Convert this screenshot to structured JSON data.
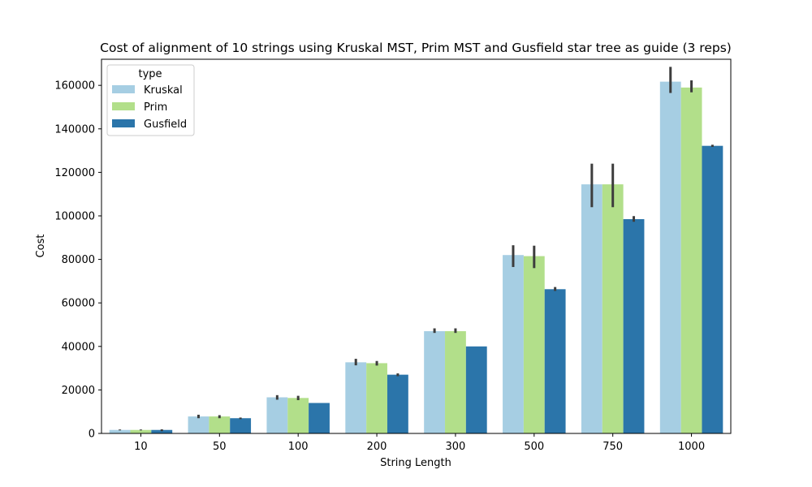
{
  "chart_data": {
    "type": "bar",
    "title": "Cost of alignment of 10 strings using Kruskal MST, Prim MST and Gusfield star tree as guide (3 reps)",
    "xlabel": "String Length",
    "ylabel": "Cost",
    "ylim": [
      0,
      172000
    ],
    "yticks": [
      0,
      20000,
      40000,
      60000,
      80000,
      100000,
      120000,
      140000,
      160000
    ],
    "categories": [
      "10",
      "50",
      "100",
      "200",
      "300",
      "500",
      "750",
      "1000"
    ],
    "legend": {
      "title": "type",
      "position": "top-left"
    },
    "series": [
      {
        "name": "Kruskal",
        "color": "#a6cee3",
        "values": [
          1600,
          7800,
          16600,
          32700,
          47000,
          82000,
          114500,
          161700
        ],
        "err_low": [
          1400,
          7000,
          15500,
          31300,
          46200,
          76500,
          104000,
          156500
        ],
        "err_high": [
          1800,
          8600,
          17600,
          34300,
          48300,
          86500,
          124000,
          168500
        ]
      },
      {
        "name": "Prim",
        "color": "#b2df8a",
        "values": [
          1600,
          7800,
          16300,
          32300,
          47000,
          81500,
          114500,
          159000
        ],
        "err_low": [
          1400,
          7000,
          15300,
          31200,
          46200,
          76000,
          104000,
          156800
        ],
        "err_high": [
          1800,
          8400,
          17300,
          33300,
          48300,
          86300,
          124000,
          162300
        ]
      },
      {
        "name": "Gusfield",
        "color": "#2b75aa",
        "values": [
          1600,
          7000,
          14000,
          27000,
          40000,
          66300,
          98500,
          132200
        ],
        "err_low": [
          1000,
          6600,
          14000,
          26300,
          40000,
          65500,
          97300,
          131700
        ],
        "err_high": [
          1900,
          7300,
          14000,
          27600,
          40000,
          67300,
          99900,
          132700
        ]
      }
    ]
  }
}
